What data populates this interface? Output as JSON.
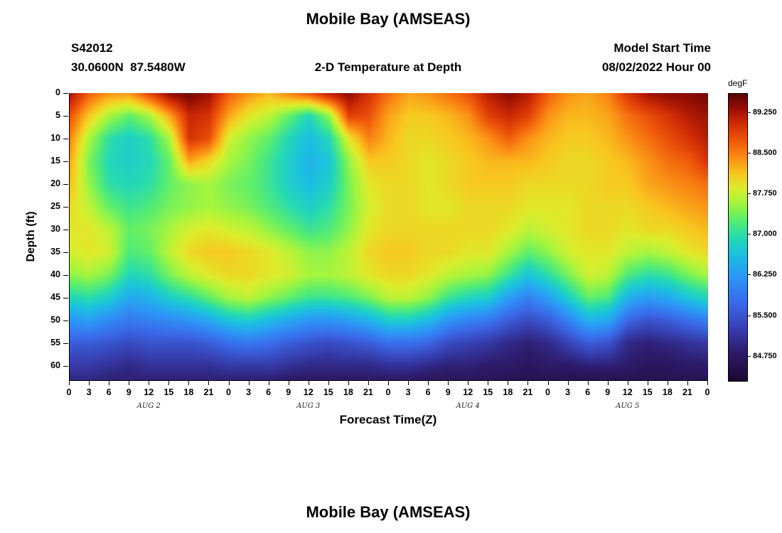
{
  "header": {
    "title": "Mobile Bay (AMSEAS)",
    "station_id": "S42012",
    "station_coords": "30.0600N  87.5480W",
    "plot_subtitle": "2-D Temperature at Depth",
    "model_start_label": "Model Start Time",
    "model_start_value": "08/02/2022 Hour 00"
  },
  "axes": {
    "xlabel": "Forecast Time(Z)",
    "ylabel": "Depth (ft)"
  },
  "colorbar": {
    "unit": "degF",
    "tick_labels": [
      "89.250",
      "88.500",
      "87.750",
      "87.000",
      "86.250",
      "85.500",
      "84.750"
    ],
    "tick_values": [
      89.25,
      88.5,
      87.75,
      87.0,
      86.25,
      85.5,
      84.75
    ]
  },
  "next_panel": {
    "title": "Mobile Bay (AMSEAS)"
  },
  "chart_data": {
    "type": "heatmap",
    "title": "Mobile Bay (AMSEAS)",
    "subtitle": "2-D Temperature at Depth",
    "xlabel": "Forecast Time(Z)",
    "ylabel": "Depth (ft)",
    "value_unit": "degF",
    "value_range": [
      84.3,
      89.6
    ],
    "x_hours": [
      0,
      3,
      6,
      9,
      12,
      15,
      18,
      21,
      24,
      27,
      30,
      33,
      36,
      39,
      42,
      45,
      48,
      51,
      54,
      57,
      60,
      63,
      66,
      69,
      72,
      75,
      78,
      81,
      84,
      87,
      90,
      93,
      96
    ],
    "x_tick_labels": [
      "0",
      "3",
      "6",
      "9",
      "12",
      "15",
      "18",
      "21",
      "0",
      "3",
      "6",
      "9",
      "12",
      "15",
      "18",
      "21",
      "0",
      "3",
      "6",
      "9",
      "12",
      "15",
      "18",
      "21",
      "0",
      "3",
      "6",
      "9",
      "12",
      "15",
      "18",
      "21",
      "0"
    ],
    "day_labels": [
      {
        "label": "AUG 2",
        "hour": 12
      },
      {
        "label": "AUG 3",
        "hour": 36
      },
      {
        "label": "AUG 4",
        "hour": 60
      },
      {
        "label": "AUG 5",
        "hour": 84
      }
    ],
    "depth_ticks": [
      0,
      5,
      10,
      15,
      20,
      25,
      30,
      35,
      40,
      45,
      50,
      55,
      60
    ],
    "depth_max": 63.2,
    "depth_levels": [
      0,
      5,
      10,
      15,
      20,
      25,
      30,
      35,
      40,
      45,
      50,
      55,
      60,
      63
    ],
    "grid_degF": [
      [
        89.3,
        88.7,
        88.4,
        88.4,
        88.9,
        89.4,
        89.5,
        89.3,
        88.7,
        88.4,
        88.2,
        88.5,
        88.8,
        89.2,
        89.4,
        89.0,
        88.6,
        88.3,
        88.4,
        88.6,
        88.8,
        89.2,
        89.4,
        89.2,
        88.7,
        88.4,
        88.3,
        88.5,
        89.0,
        89.3,
        89.4,
        89.4,
        89.5
      ],
      [
        88.8,
        88.1,
        87.6,
        87.3,
        87.6,
        88.3,
        89.1,
        89.0,
        88.3,
        87.9,
        87.7,
        87.3,
        86.9,
        87.5,
        88.9,
        88.8,
        88.3,
        88.1,
        88.1,
        88.2,
        88.4,
        88.9,
        89.1,
        88.9,
        88.4,
        88.2,
        88.2,
        88.3,
        88.6,
        88.8,
        89.0,
        89.2,
        89.3
      ],
      [
        88.5,
        87.6,
        87.0,
        86.8,
        87.0,
        87.6,
        89.0,
        88.8,
        87.8,
        87.5,
        87.3,
        86.9,
        86.6,
        86.9,
        87.9,
        88.5,
        88.2,
        88.0,
        88.0,
        88.1,
        88.2,
        88.4,
        88.7,
        88.4,
        88.2,
        88.1,
        88.1,
        88.2,
        88.4,
        88.6,
        88.8,
        89.0,
        89.2
      ],
      [
        88.3,
        87.4,
        86.9,
        86.8,
        86.9,
        87.3,
        88.3,
        88.0,
        87.6,
        87.4,
        87.1,
        86.8,
        86.5,
        86.7,
        87.5,
        88.1,
        88.1,
        88.0,
        87.9,
        88.0,
        88.1,
        88.2,
        88.2,
        88.2,
        88.1,
        88.0,
        88.0,
        88.1,
        88.2,
        88.4,
        88.6,
        88.7,
        89.0
      ],
      [
        88.2,
        87.5,
        87.0,
        86.9,
        87.0,
        87.3,
        87.5,
        87.6,
        87.4,
        87.3,
        87.1,
        86.8,
        86.6,
        86.8,
        87.4,
        87.9,
        88.0,
        88.0,
        87.9,
        88.0,
        88.1,
        88.1,
        88.1,
        88.0,
        88.0,
        88.0,
        88.0,
        88.1,
        88.1,
        88.3,
        88.4,
        88.5,
        88.6
      ],
      [
        88.0,
        87.7,
        87.3,
        87.1,
        87.2,
        87.4,
        87.5,
        87.6,
        87.5,
        87.4,
        87.2,
        87.0,
        86.8,
        87.0,
        87.4,
        87.8,
        88.0,
        88.0,
        87.9,
        87.9,
        88.0,
        88.0,
        88.0,
        87.9,
        87.9,
        87.9,
        88.0,
        88.0,
        88.0,
        88.1,
        88.2,
        88.3,
        88.4
      ],
      [
        87.9,
        87.9,
        87.7,
        87.3,
        87.4,
        87.6,
        87.8,
        87.9,
        87.8,
        87.7,
        87.5,
        87.3,
        87.1,
        87.2,
        87.5,
        87.9,
        88.0,
        88.0,
        88.0,
        88.0,
        88.0,
        88.0,
        87.9,
        87.7,
        87.8,
        87.9,
        88.0,
        88.0,
        87.9,
        88.0,
        88.0,
        88.1,
        88.2
      ],
      [
        87.8,
        87.9,
        87.8,
        87.2,
        87.3,
        87.7,
        88.0,
        88.1,
        88.1,
        88.0,
        87.9,
        87.7,
        87.5,
        87.5,
        87.7,
        88.0,
        88.1,
        88.1,
        88.0,
        88.0,
        87.9,
        87.9,
        87.6,
        87.3,
        87.5,
        87.8,
        87.9,
        87.9,
        87.7,
        87.6,
        87.7,
        87.9,
        88.0
      ],
      [
        87.5,
        87.6,
        87.4,
        86.9,
        87.0,
        87.4,
        87.7,
        87.9,
        88.0,
        88.0,
        87.9,
        87.8,
        87.6,
        87.6,
        87.7,
        87.9,
        88.0,
        88.0,
        87.9,
        87.7,
        87.6,
        87.5,
        87.1,
        86.7,
        87.0,
        87.4,
        87.8,
        87.7,
        87.2,
        87.0,
        87.1,
        87.4,
        87.6
      ],
      [
        86.9,
        87.0,
        86.8,
        86.4,
        86.5,
        86.8,
        87.0,
        87.3,
        87.6,
        87.7,
        87.5,
        87.3,
        87.1,
        87.1,
        87.2,
        87.4,
        87.7,
        87.7,
        87.5,
        87.1,
        86.9,
        86.8,
        86.3,
        86.0,
        86.3,
        86.8,
        87.3,
        87.2,
        86.5,
        86.3,
        86.4,
        86.7,
        86.9
      ],
      [
        86.2,
        86.3,
        86.1,
        85.9,
        86.0,
        86.1,
        86.2,
        86.4,
        86.7,
        86.8,
        86.6,
        86.4,
        86.2,
        86.2,
        86.3,
        86.5,
        86.8,
        86.8,
        86.6,
        86.2,
        86.0,
        85.9,
        85.6,
        85.4,
        85.6,
        86.0,
        86.5,
        86.4,
        85.7,
        85.5,
        85.6,
        85.8,
        86.0
      ],
      [
        85.6,
        85.6,
        85.5,
        85.4,
        85.5,
        85.5,
        85.5,
        85.6,
        85.8,
        85.9,
        85.8,
        85.6,
        85.5,
        85.4,
        85.5,
        85.6,
        85.8,
        85.8,
        85.7,
        85.4,
        85.3,
        85.2,
        85.0,
        84.9,
        85.0,
        85.3,
        85.6,
        85.5,
        85.0,
        84.9,
        85.0,
        85.1,
        85.2
      ],
      [
        85.2,
        85.2,
        85.1,
        85.0,
        85.1,
        85.1,
        85.1,
        85.1,
        85.2,
        85.2,
        85.2,
        85.1,
        85.0,
        85.0,
        85.0,
        85.0,
        85.1,
        85.1,
        85.0,
        84.9,
        84.9,
        84.8,
        84.8,
        84.7,
        84.8,
        84.8,
        84.9,
        84.9,
        84.8,
        84.7,
        84.7,
        84.8,
        84.8
      ],
      [
        85.0,
        85.0,
        84.9,
        84.9,
        84.9,
        84.9,
        84.9,
        84.9,
        84.9,
        84.9,
        84.9,
        84.8,
        84.8,
        84.8,
        84.8,
        84.8,
        84.8,
        84.8,
        84.7,
        84.7,
        84.7,
        84.7,
        84.6,
        84.6,
        84.6,
        84.6,
        84.6,
        84.6,
        84.6,
        84.6,
        84.6,
        84.6,
        84.6
      ]
    ],
    "colormap_stops": [
      [
        0.0,
        28,
        8,
        52
      ],
      [
        0.1,
        45,
        28,
        108
      ],
      [
        0.18,
        55,
        62,
        175
      ],
      [
        0.27,
        58,
        105,
        232
      ],
      [
        0.36,
        45,
        150,
        247
      ],
      [
        0.44,
        28,
        192,
        225
      ],
      [
        0.5,
        38,
        218,
        178
      ],
      [
        0.56,
        90,
        238,
        110
      ],
      [
        0.62,
        165,
        245,
        62
      ],
      [
        0.67,
        220,
        237,
        45
      ],
      [
        0.72,
        248,
        200,
        32
      ],
      [
        0.78,
        250,
        140,
        20
      ],
      [
        0.84,
        238,
        85,
        10
      ],
      [
        0.9,
        205,
        42,
        5
      ],
      [
        0.95,
        150,
        15,
        3
      ],
      [
        1.0,
        88,
        4,
        5
      ]
    ],
    "legend_position": "right",
    "grid_lines": false
  }
}
